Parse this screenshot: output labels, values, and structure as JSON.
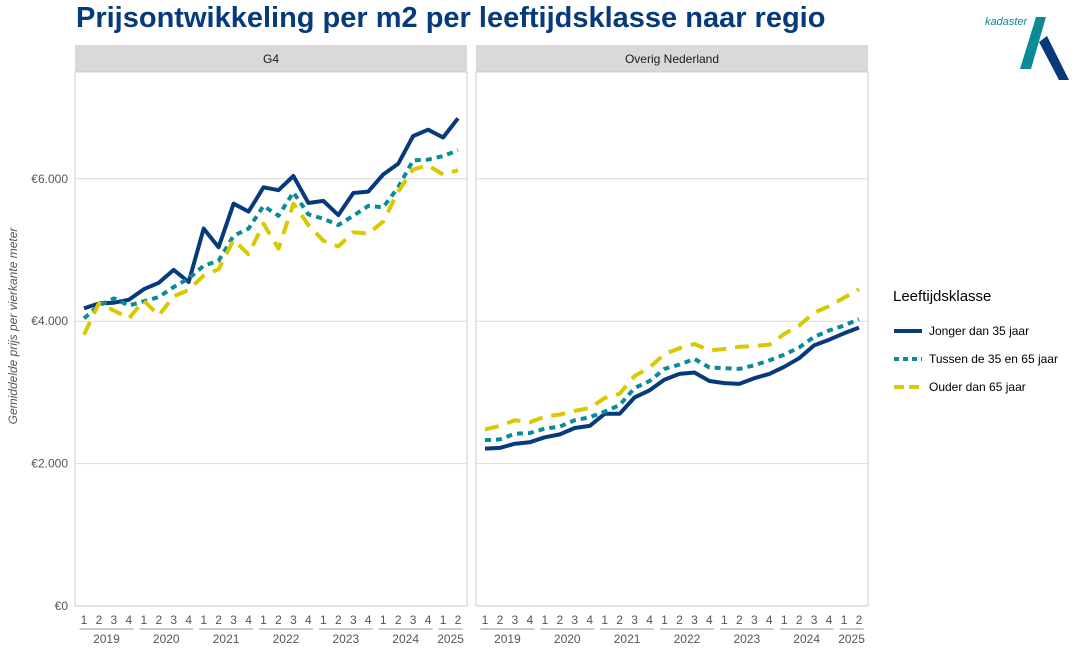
{
  "page": {
    "title": "Prijsontwikkeling per m2 per leeftijdsklasse naar regio",
    "logo_text": "kadaster"
  },
  "colors": {
    "title": "#073a7b",
    "strip_bg": "#d9d9d9",
    "grid": "#d9d9d9",
    "logo": "#0b8a98"
  },
  "legend": {
    "title": "Leeftijdsklasse",
    "items": [
      {
        "label": "Jonger dan 35 jaar",
        "color": "#073a7b",
        "dash": "solid"
      },
      {
        "label": "Tussen de 35 en 65 jaar",
        "color": "#0b8a98",
        "dash": "dotted"
      },
      {
        "label": "Ouder dan 65 jaar",
        "color": "#d8c900",
        "dash": "dashed"
      }
    ]
  },
  "chart_data": {
    "type": "line",
    "ylabel": "Gemiddelde prijs per vierkante meter",
    "xlabel": "",
    "ylim": [
      0,
      7500
    ],
    "yticks": [
      {
        "value": 0,
        "label": "€0"
      },
      {
        "value": 2000,
        "label": "€2.000"
      },
      {
        "value": 4000,
        "label": "€4.000"
      },
      {
        "value": 6000,
        "label": "€6.000"
      }
    ],
    "grid": true,
    "legend_position": "right",
    "x_quarters": [
      "1",
      "2",
      "3",
      "4",
      "1",
      "2",
      "3",
      "4",
      "1",
      "2",
      "3",
      "4",
      "1",
      "2",
      "3",
      "4",
      "1",
      "2",
      "3",
      "4",
      "1",
      "2",
      "3",
      "4",
      "1",
      "2"
    ],
    "x_years": [
      "2019",
      "2020",
      "2021",
      "2022",
      "2023",
      "2024",
      "2025"
    ],
    "facets": [
      {
        "name": "G4",
        "series": [
          {
            "name": "Jonger dan 35 jaar",
            "values": [
              4180,
              4250,
              4260,
              4300,
              4450,
              4540,
              4720,
              4550,
              5300,
              5040,
              5650,
              5540,
              5880,
              5840,
              6040,
              5660,
              5690,
              5490,
              5800,
              5820,
              6060,
              6210,
              6600,
              6690,
              6580,
              6850
            ]
          },
          {
            "name": "Tussen de 35 en 65 jaar",
            "values": [
              4040,
              4220,
              4320,
              4220,
              4280,
              4340,
              4480,
              4600,
              4780,
              4850,
              5200,
              5300,
              5620,
              5480,
              5810,
              5500,
              5440,
              5350,
              5480,
              5620,
              5600,
              5880,
              6260,
              6270,
              6320,
              6400
            ]
          },
          {
            "name": "Ouder dan 65 jaar",
            "values": [
              3810,
              4250,
              4150,
              4040,
              4290,
              4080,
              4350,
              4440,
              4640,
              4730,
              5140,
              4940,
              5370,
              5020,
              5650,
              5350,
              5130,
              5050,
              5250,
              5230,
              5400,
              5820,
              6130,
              6190,
              6060,
              6120
            ]
          }
        ]
      },
      {
        "name": "Overig Nederland",
        "series": [
          {
            "name": "Jonger dan 35 jaar",
            "values": [
              2210,
              2220,
              2280,
              2300,
              2370,
              2410,
              2500,
              2530,
              2700,
              2700,
              2930,
              3030,
              3180,
              3260,
              3280,
              3160,
              3130,
              3120,
              3200,
              3260,
              3360,
              3480,
              3660,
              3740,
              3830,
              3910
            ]
          },
          {
            "name": "Tussen de 35 en 65 jaar",
            "values": [
              2330,
              2340,
              2420,
              2430,
              2490,
              2520,
              2610,
              2650,
              2730,
              2820,
              3060,
              3160,
              3330,
              3390,
              3470,
              3350,
              3340,
              3330,
              3380,
              3450,
              3530,
              3630,
              3780,
              3870,
              3940,
              4030
            ]
          },
          {
            "name": "Ouder dan 65 jaar",
            "values": [
              2480,
              2530,
              2610,
              2580,
              2660,
              2690,
              2740,
              2780,
              2920,
              2980,
              3230,
              3350,
              3540,
              3620,
              3680,
              3590,
              3610,
              3640,
              3650,
              3670,
              3820,
              3940,
              4120,
              4210,
              4330,
              4450
            ]
          }
        ]
      }
    ]
  }
}
